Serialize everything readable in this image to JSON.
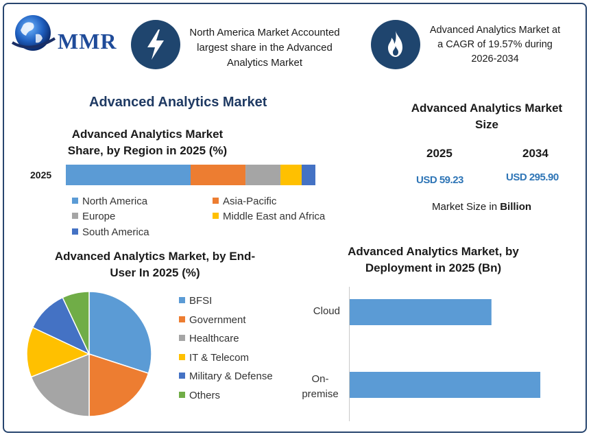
{
  "brand": {
    "logo_text": "MMR"
  },
  "banners": [
    {
      "icon": "lightning-bolt-icon",
      "text": "North America Market Accounted largest share in the Advanced Analytics Market"
    },
    {
      "icon": "flame-icon",
      "text": "Advanced Analytics Market at a CAGR of 19.57% during 2026-2034"
    }
  ],
  "main_title": "Advanced Analytics Market",
  "market_size": {
    "title": "Advanced Analytics Market Size",
    "years": [
      {
        "year": "2025",
        "value": "USD 59.23"
      },
      {
        "year": "2034",
        "value": "USD 295.90"
      }
    ],
    "unit_prefix": "Market Size in ",
    "unit_bold": "Billion"
  },
  "colors": {
    "blue": "#5b9bd5",
    "orange": "#ed7d31",
    "gray": "#a5a5a5",
    "yellow": "#ffc000",
    "darkblue": "#4472c4",
    "green": "#70ad47",
    "frame": "#27456e",
    "icon_bg": "#1f456e"
  },
  "chart_data": [
    {
      "type": "bar",
      "orientation": "horizontal-stacked",
      "title": "Advanced Analytics Market Share, by Region in 2025 (%)",
      "categories": [
        "2025"
      ],
      "series": [
        {
          "name": "North America",
          "values": [
            50
          ],
          "color": "#5b9bd5"
        },
        {
          "name": "Asia-Pacific",
          "values": [
            22
          ],
          "color": "#ed7d31"
        },
        {
          "name": "Europe",
          "values": [
            14
          ],
          "color": "#a5a5a5"
        },
        {
          "name": "Middle East and Africa",
          "values": [
            8.5
          ],
          "color": "#ffc000"
        },
        {
          "name": "South America",
          "values": [
            5.5
          ],
          "color": "#4472c4"
        }
      ],
      "legend": "bottom"
    },
    {
      "type": "pie",
      "title": "Advanced Analytics Market, by End-User In 2025 (%)",
      "categories": [
        "BFSI",
        "Government",
        "Healthcare",
        "IT & Telecom",
        "Military & Defense",
        "Others"
      ],
      "values": [
        30,
        20,
        19,
        13,
        11,
        7
      ],
      "colors": [
        "#5b9bd5",
        "#ed7d31",
        "#a5a5a5",
        "#ffc000",
        "#4472c4",
        "#70ad47"
      ],
      "legend": "right"
    },
    {
      "type": "bar",
      "orientation": "horizontal",
      "title": "Advanced Analytics Market, by Deployment in 2025 (Bn)",
      "categories": [
        "Cloud",
        "On-premise"
      ],
      "values": [
        23.5,
        31.6
      ],
      "color": "#5b9bd5",
      "xlim": [
        0,
        40
      ]
    }
  ]
}
